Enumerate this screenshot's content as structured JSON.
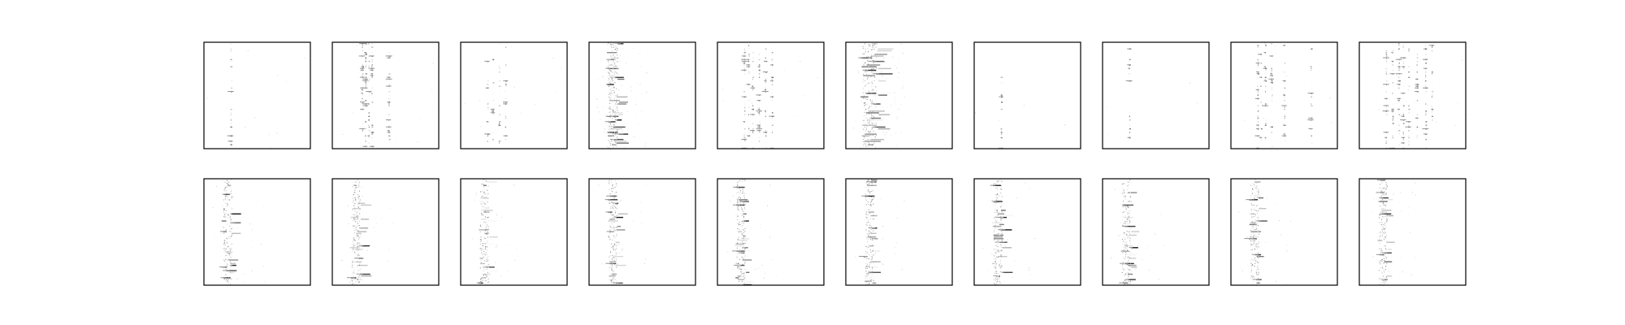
{
  "chart_data": {
    "type": "heatmap",
    "rows": 2,
    "cols": 10,
    "colormap": "gray_r",
    "axis_ticks": false,
    "background": "#ffffff",
    "frame_color": "#000000",
    "panels": [
      {
        "row": 0,
        "col": 0,
        "pattern": "single-column",
        "column": 0.25,
        "col_width": 0.01,
        "density": 0.35,
        "noise": 0.01
      },
      {
        "row": 0,
        "col": 1,
        "pattern": "multi-column",
        "columns": [
          0.28,
          0.31,
          0.34,
          0.37,
          0.53
        ],
        "col_width": 0.008,
        "density": 0.45,
        "noise": 0.01
      },
      {
        "row": 0,
        "col": 2,
        "pattern": "multi-column",
        "columns": [
          0.25,
          0.3,
          0.36,
          0.42
        ],
        "col_width": 0.008,
        "density": 0.3,
        "noise": 0.01
      },
      {
        "row": 0,
        "col": 3,
        "pattern": "dense-band",
        "column": 0.22,
        "col_width": 0.06,
        "density": 0.55,
        "noise": 0.05
      },
      {
        "row": 0,
        "col": 4,
        "pattern": "multi-column",
        "columns": [
          0.25,
          0.29,
          0.33,
          0.39,
          0.45,
          0.51
        ],
        "col_width": 0.008,
        "density": 0.4,
        "noise": 0.01
      },
      {
        "row": 0,
        "col": 5,
        "pattern": "dense-band",
        "column": 0.22,
        "col_width": 0.08,
        "density": 0.5,
        "noise": 0.07
      },
      {
        "row": 0,
        "col": 6,
        "pattern": "single-column",
        "column": 0.25,
        "col_width": 0.01,
        "density": 0.3,
        "noise": 0.005
      },
      {
        "row": 0,
        "col": 7,
        "pattern": "single-column",
        "column": 0.25,
        "col_width": 0.008,
        "density": 0.2,
        "noise": 0.003
      },
      {
        "row": 0,
        "col": 8,
        "pattern": "multi-column",
        "columns": [
          0.25,
          0.28,
          0.32,
          0.38,
          0.5,
          0.75
        ],
        "col_width": 0.008,
        "density": 0.35,
        "noise": 0.01
      },
      {
        "row": 0,
        "col": 9,
        "pattern": "multi-column",
        "columns": [
          0.25,
          0.31,
          0.37,
          0.41,
          0.46,
          0.54,
          0.62,
          0.68
        ],
        "col_width": 0.008,
        "density": 0.4,
        "noise": 0.01
      },
      {
        "row": 1,
        "col": 0,
        "pattern": "sparse-band",
        "column": 0.22,
        "col_width": 0.05,
        "density": 0.4,
        "noise": 0.02
      },
      {
        "row": 1,
        "col": 1,
        "pattern": "sparse-band",
        "column": 0.22,
        "col_width": 0.05,
        "density": 0.42,
        "noise": 0.02
      },
      {
        "row": 1,
        "col": 2,
        "pattern": "sparse-band",
        "column": 0.22,
        "col_width": 0.05,
        "density": 0.4,
        "noise": 0.02
      },
      {
        "row": 1,
        "col": 3,
        "pattern": "sparse-band",
        "column": 0.22,
        "col_width": 0.05,
        "density": 0.4,
        "noise": 0.02
      },
      {
        "row": 1,
        "col": 4,
        "pattern": "sparse-band",
        "column": 0.22,
        "col_width": 0.05,
        "density": 0.42,
        "noise": 0.02
      },
      {
        "row": 1,
        "col": 5,
        "pattern": "sparse-band",
        "column": 0.22,
        "col_width": 0.05,
        "density": 0.4,
        "noise": 0.02
      },
      {
        "row": 1,
        "col": 6,
        "pattern": "sparse-band",
        "column": 0.22,
        "col_width": 0.05,
        "density": 0.4,
        "noise": 0.02
      },
      {
        "row": 1,
        "col": 7,
        "pattern": "sparse-band",
        "column": 0.22,
        "col_width": 0.05,
        "density": 0.38,
        "noise": 0.02
      },
      {
        "row": 1,
        "col": 8,
        "pattern": "sparse-band",
        "column": 0.22,
        "col_width": 0.05,
        "density": 0.4,
        "noise": 0.02
      },
      {
        "row": 1,
        "col": 9,
        "pattern": "sparse-band",
        "column": 0.22,
        "col_width": 0.05,
        "density": 0.35,
        "noise": 0.02
      }
    ]
  }
}
